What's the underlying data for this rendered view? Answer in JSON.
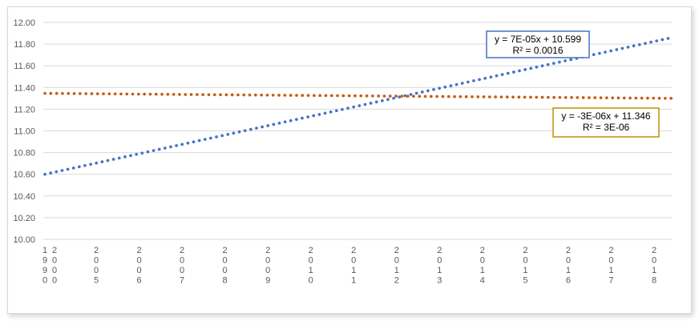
{
  "chart_data": {
    "type": "scatter",
    "title": "",
    "xlabel": "",
    "ylabel": "",
    "ylim": [
      10.0,
      12.0
    ],
    "y_ticks": [
      "10.00",
      "10.20",
      "10.40",
      "10.60",
      "10.80",
      "11.00",
      "11.20",
      "11.40",
      "11.60",
      "11.80",
      "12.00"
    ],
    "x_ticks": [
      "1990",
      "2000",
      "2005",
      "2006",
      "2007",
      "2008",
      "2009",
      "2010",
      "2011",
      "2012",
      "2013",
      "2014",
      "2015",
      "2016",
      "2017",
      "2018"
    ],
    "grid": true,
    "series": [
      {
        "color": "#4472c4",
        "style": "dotted trendline",
        "start": 10.6,
        "end": 11.86,
        "equation": "y = 7E-05x + 10.599",
        "r2": "R² = 0.0016",
        "box_color": "#4472c4"
      },
      {
        "color": "#c55a11",
        "style": "dotted trendline",
        "start": 11.346,
        "end": 11.3,
        "equation": "y = -3E-06x + 11.346",
        "r2": "R² = 3E-06",
        "box_color": "#bf9000"
      }
    ]
  }
}
